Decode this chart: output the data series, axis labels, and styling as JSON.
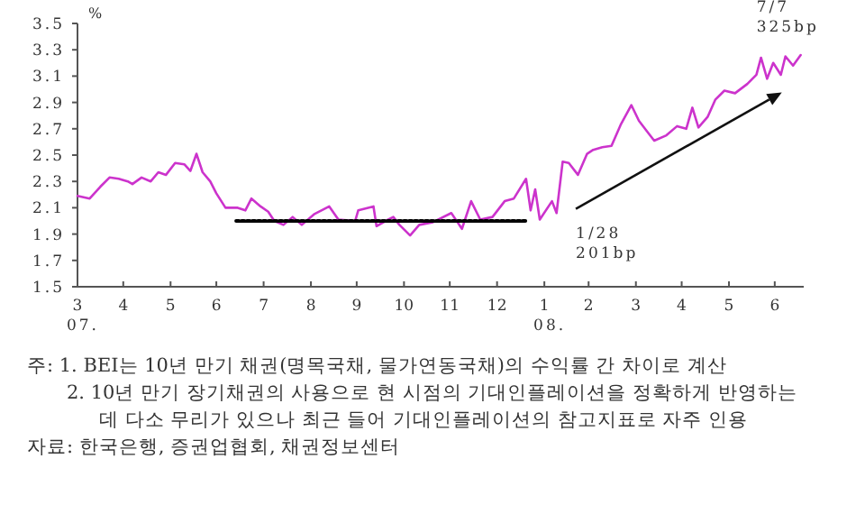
{
  "chart_data": {
    "type": "line",
    "ylabel": "%",
    "xlim": [
      "2007-03-31",
      "2008-07-19"
    ],
    "ylim": [
      1.5,
      3.5
    ],
    "xticks": [
      {
        "value": "2007-03-31",
        "label": "3\n07."
      },
      {
        "value": "2007-04-30",
        "label": "4"
      },
      {
        "value": "2007-05-31",
        "label": "5"
      },
      {
        "value": "2007-06-30",
        "label": "6"
      },
      {
        "value": "2007-07-31",
        "label": "7"
      },
      {
        "value": "2007-08-31",
        "label": "8"
      },
      {
        "value": "2007-09-30",
        "label": "9"
      },
      {
        "value": "2007-10-31",
        "label": "10"
      },
      {
        "value": "2007-11-30",
        "label": "11"
      },
      {
        "value": "2007-12-31",
        "label": "12"
      },
      {
        "value": "2008-01-31",
        "label": "1\n08."
      },
      {
        "value": "2008-02-29",
        "label": "2"
      },
      {
        "value": "2008-03-31",
        "label": "3"
      },
      {
        "value": "2008-04-30",
        "label": "4"
      },
      {
        "value": "2008-05-31",
        "label": "5"
      },
      {
        "value": "2008-06-30",
        "label": "6"
      }
    ],
    "yticks": [
      1.5,
      1.7,
      1.9,
      2.1,
      2.3,
      2.5,
      2.7,
      2.9,
      3.1,
      3.3,
      3.5
    ],
    "marker": "none",
    "series": [
      {
        "color": "#cc33cc",
        "line_style": "solid",
        "x": [
          "2007-03-31",
          "2007-04-08",
          "2007-04-15",
          "2007-04-21",
          "2007-04-27",
          "2007-05-03",
          "2007-05-06",
          "2007-05-12",
          "2007-05-18",
          "2007-05-23",
          "2007-05-28",
          "2007-06-03",
          "2007-06-09",
          "2007-06-13",
          "2007-06-17",
          "2007-06-21",
          "2007-06-26",
          "2007-06-30",
          "2007-07-06",
          "2007-07-14",
          "2007-07-19",
          "2007-07-23",
          "2007-07-29",
          "2007-08-03",
          "2007-08-07",
          "2007-08-13",
          "2007-08-19",
          "2007-08-25",
          "2007-09-02",
          "2007-09-12",
          "2007-09-18",
          "2007-09-29",
          "2007-10-01",
          "2007-10-11",
          "2007-10-13",
          "2007-10-19",
          "2007-10-24",
          "2007-10-28",
          "2007-11-04",
          "2007-11-10",
          "2007-11-19",
          "2007-12-01",
          "2007-12-08",
          "2007-12-14",
          "2007-12-20",
          "2007-12-28",
          "2008-01-05",
          "2008-01-11",
          "2008-01-19",
          "2008-01-22",
          "2008-01-25",
          "2008-01-28",
          "2008-02-05",
          "2008-02-08",
          "2008-02-12",
          "2008-02-16",
          "2008-02-22",
          "2008-02-28",
          "2008-03-03",
          "2008-03-09",
          "2008-03-15",
          "2008-03-21",
          "2008-03-28",
          "2008-04-02",
          "2008-04-08",
          "2008-04-12",
          "2008-04-20",
          "2008-04-27",
          "2008-05-03",
          "2008-05-07",
          "2008-05-11",
          "2008-05-17",
          "2008-05-22",
          "2008-05-28",
          "2008-06-04",
          "2008-06-12",
          "2008-06-18",
          "2008-06-21",
          "2008-06-25",
          "2008-06-29",
          "2008-07-04",
          "2008-07-07",
          "2008-07-12",
          "2008-07-17"
        ],
        "values": [
          2.19,
          2.17,
          2.26,
          2.33,
          2.32,
          2.3,
          2.28,
          2.33,
          2.3,
          2.37,
          2.35,
          2.44,
          2.43,
          2.38,
          2.51,
          2.37,
          2.3,
          2.21,
          2.1,
          2.1,
          2.08,
          2.17,
          2.11,
          2.07,
          2.0,
          1.97,
          2.03,
          1.97,
          2.05,
          2.11,
          2.01,
          2.0,
          2.08,
          2.11,
          1.96,
          2.0,
          2.03,
          1.97,
          1.89,
          1.97,
          1.99,
          2.06,
          1.94,
          2.15,
          2.01,
          2.03,
          2.15,
          2.17,
          2.32,
          2.08,
          2.24,
          2.01,
          2.15,
          2.06,
          2.45,
          2.44,
          2.35,
          2.51,
          2.54,
          2.56,
          2.57,
          2.73,
          2.88,
          2.76,
          2.67,
          2.61,
          2.65,
          2.72,
          2.7,
          2.86,
          2.71,
          2.79,
          2.92,
          2.99,
          2.97,
          3.04,
          3.11,
          3.24,
          3.08,
          3.2,
          3.11,
          3.25,
          3.18,
          3.26
        ]
      },
      {
        "color": "#000000",
        "line_style": "dotted",
        "x": [
          "2007-07-13",
          "2008-01-19"
        ],
        "values": [
          2.0,
          2.0
        ]
      }
    ],
    "annotations": [
      {
        "text": "1/28 201bp",
        "x": "2008-01-28",
        "y": 2.01
      },
      {
        "text": "7/7 325bp",
        "x": "2008-07-07",
        "y": 3.25
      },
      "주: 1. BEI는 10년 만기 채권(명목국채, 물가연동국채)의 수익률 간 차이로 계산",
      "2. 10년 만기 장기채권의 사용으로 현 시점의 기대인플레이션을 정확하게 반영하는 데 다소 무리가 있으나 최근 들어 기대인플레이션의 참고지표로 자주 인용",
      "자료: 한국은행, 증권업협회, 채권정보센터"
    ]
  }
}
